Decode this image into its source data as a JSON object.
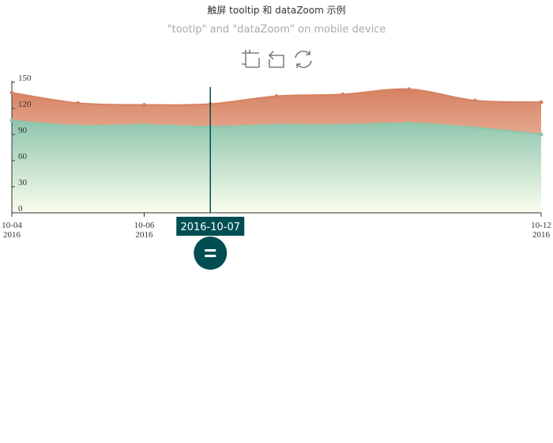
{
  "title": "触屏 tooltip 和 dataZoom 示例",
  "subtitle": "\"tootip\" and \"dataZoom\" on mobile device",
  "toolbox": {
    "icons": [
      "data-zoom-icon",
      "data-zoom-reset-icon",
      "restore-icon"
    ]
  },
  "tooltip": {
    "label": "2016-10-07",
    "handle_icon": "drag-handle-icon"
  },
  "colors": {
    "series_top": "#d68262",
    "series_top_fill_start": "#d68262",
    "series_top_fill_end": "#ffe8d9",
    "series_bottom": "#8ec6ad",
    "series_bottom_fill_start": "#8ec6ad",
    "series_bottom_fill_end": "#fbfdee",
    "pointer": "#004e52",
    "axis": "#333333"
  },
  "chart_data": {
    "type": "area",
    "x": [
      "2016-10-04",
      "2016-10-05",
      "2016-10-06",
      "2016-10-07",
      "2016-10-08",
      "2016-10-09",
      "2016-10-10",
      "2016-10-11",
      "2016-10-12"
    ],
    "x_tick_labels": [
      {
        "value": "2016-10-04",
        "line1": "10-04",
        "line2": "2016"
      },
      {
        "value": "2016-10-06",
        "line1": "10-06",
        "line2": "2016"
      },
      {
        "value": "2016-10-12",
        "line1": "10-12",
        "line2": "2016"
      }
    ],
    "yticks": [
      0,
      30,
      60,
      90,
      120,
      150
    ],
    "ylim": [
      0,
      150
    ],
    "grid": false,
    "series": [
      {
        "values": [
          138,
          126,
          124,
          125,
          134,
          136,
          142,
          129,
          127
        ]
      },
      {
        "values": [
          106,
          100,
          101,
          99,
          101,
          101,
          103,
          98,
          90
        ]
      }
    ],
    "pointer_x": "2016-10-07"
  }
}
